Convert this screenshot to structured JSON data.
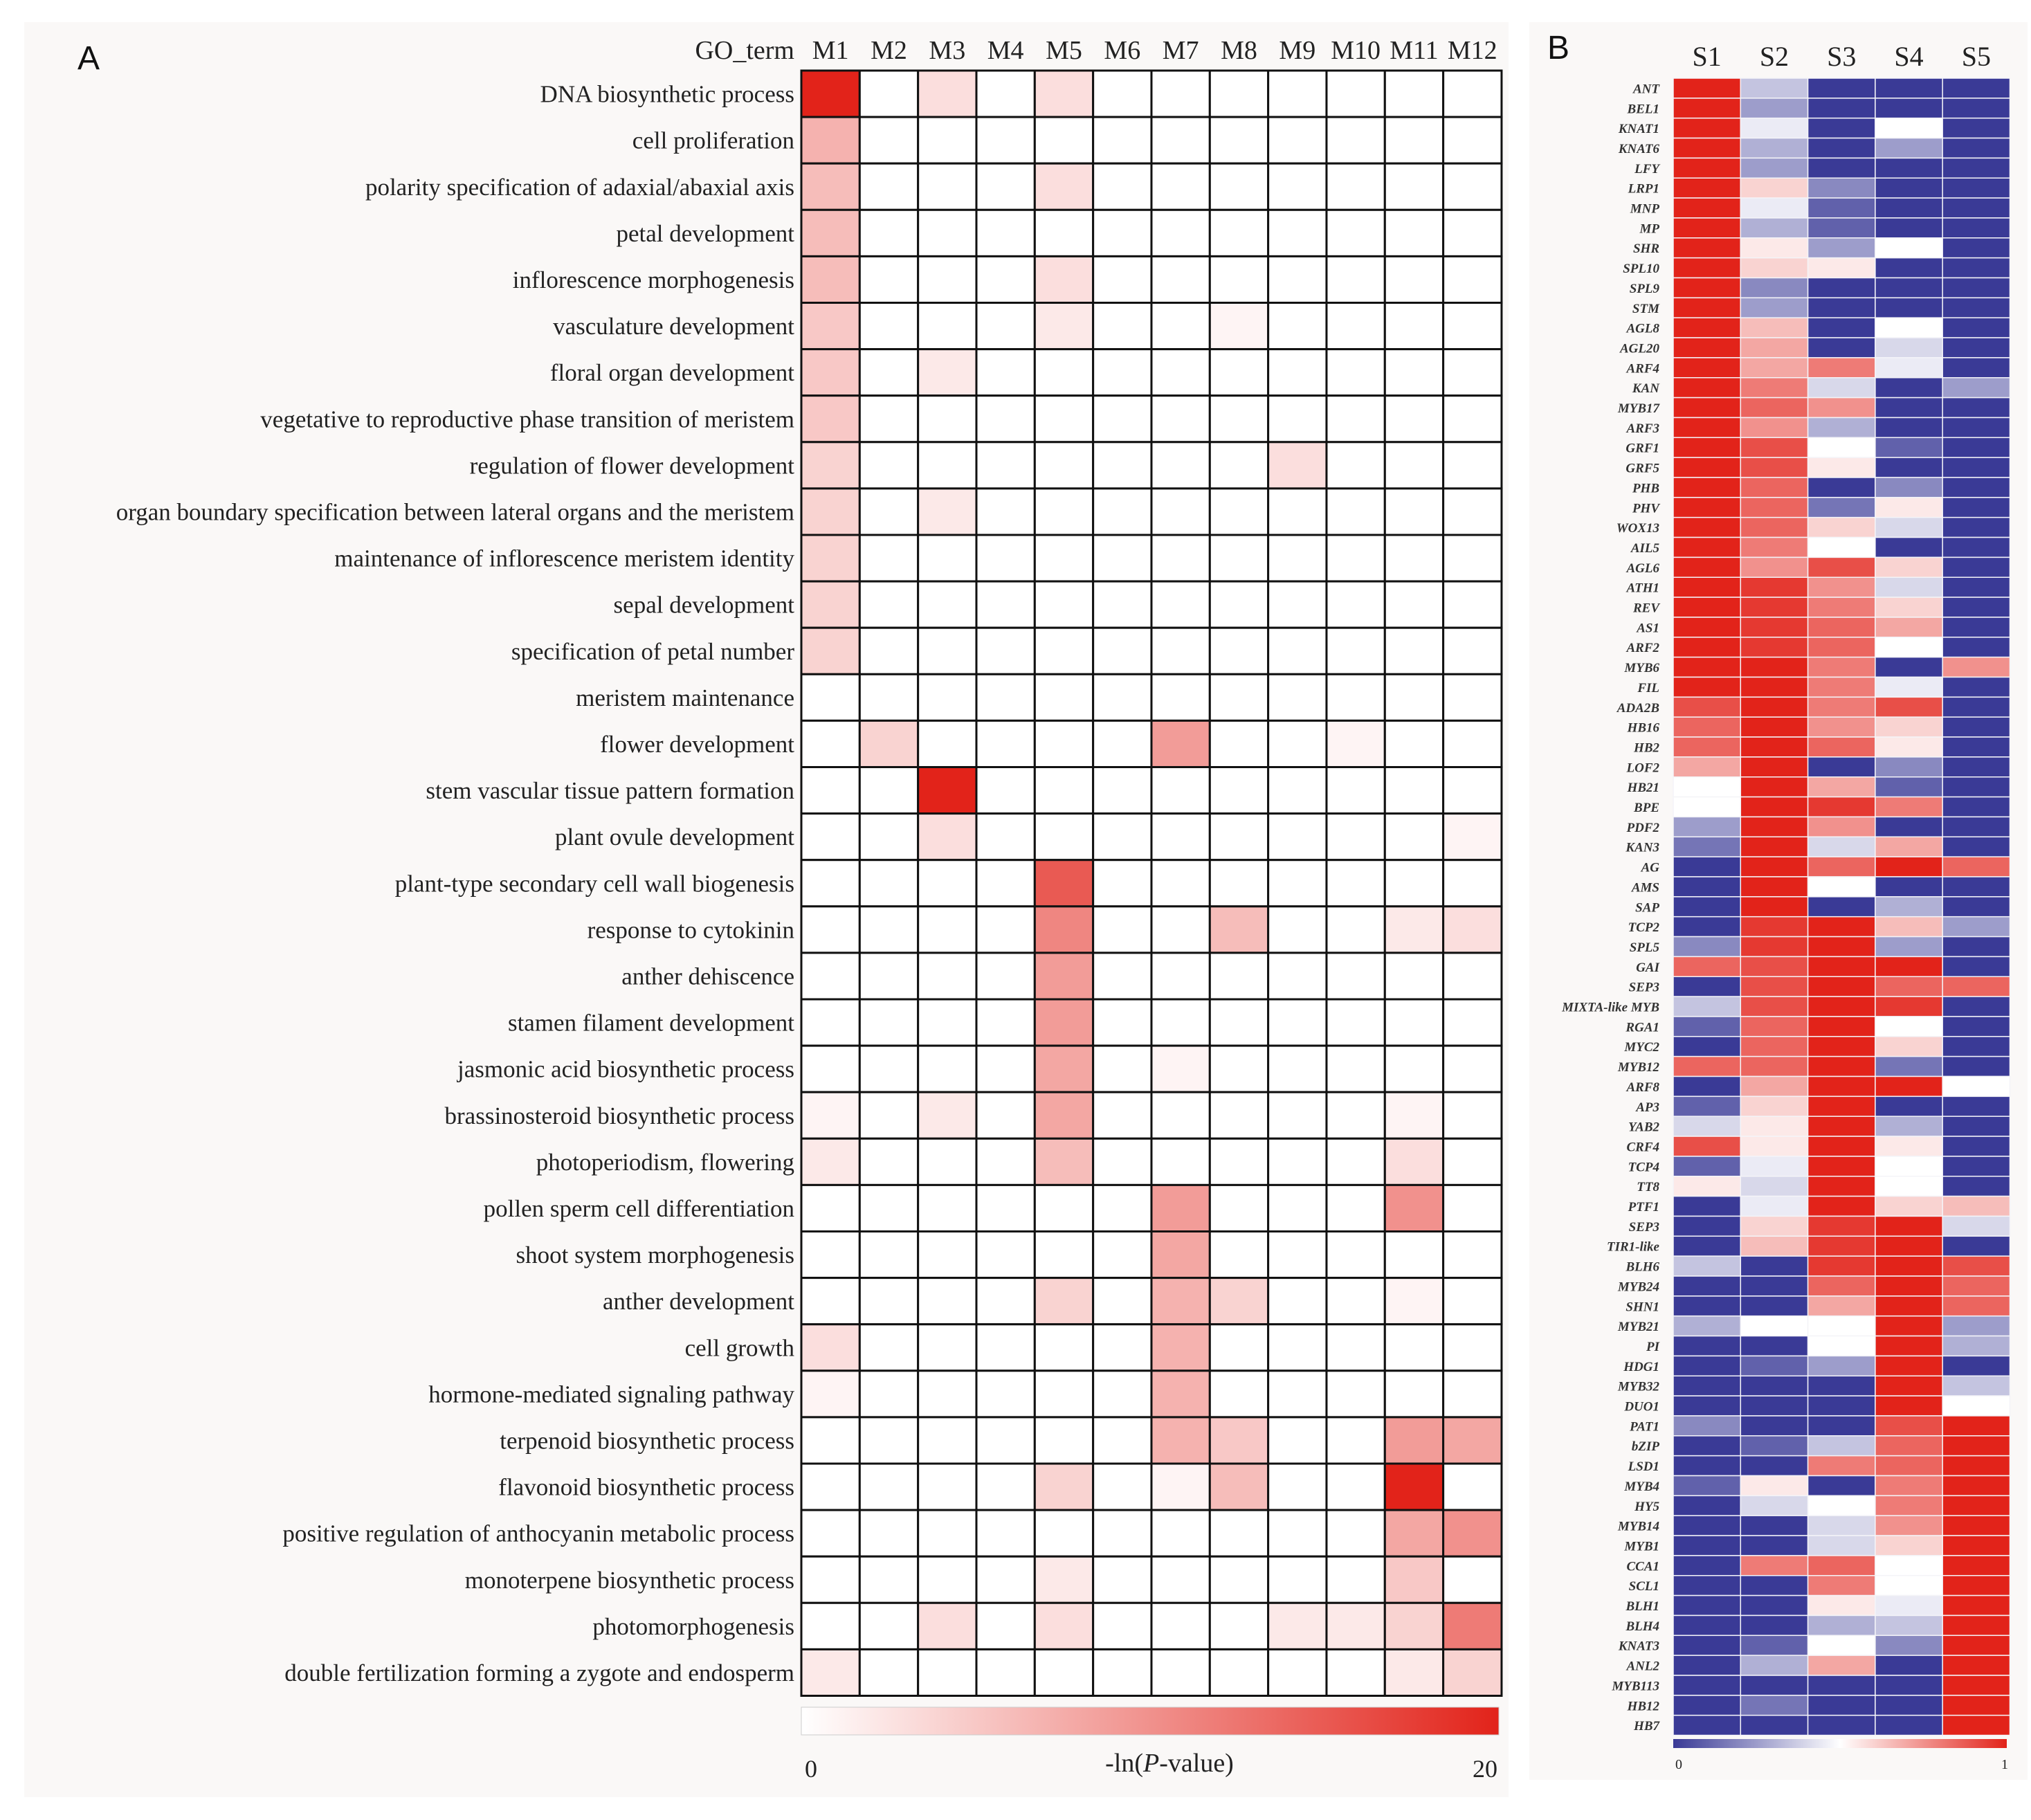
{
  "chart_data": [
    {
      "type": "heatmap",
      "panel_label": "A",
      "corner_label": "GO_term",
      "columns": [
        "M1",
        "M2",
        "M3",
        "M4",
        "M5",
        "M6",
        "M7",
        "M8",
        "M9",
        "M10",
        "M11",
        "M12"
      ],
      "rows": [
        "DNA biosynthetic process",
        "cell proliferation",
        "polarity specification of adaxial/abaxial axis",
        "petal development",
        "inflorescence morphogenesis",
        "vasculature development",
        "floral organ development",
        "vegetative to reproductive phase transition of meristem",
        "regulation of flower development",
        "organ boundary specification between lateral organs and the meristem",
        "maintenance of inflorescence meristem identity",
        "sepal development",
        "specification of petal number",
        "meristem maintenance",
        "flower development",
        "stem vascular tissue pattern formation",
        "plant ovule development",
        "plant-type secondary cell wall biogenesis",
        "response to cytokinin",
        "anther dehiscence",
        "stamen filament development",
        "jasmonic acid biosynthetic process",
        "brassinosteroid biosynthetic process",
        "photoperiodism, flowering",
        "pollen sperm cell differentiation",
        "shoot system morphogenesis",
        "anther development",
        "cell growth",
        "hormone-mediated signaling pathway",
        "terpenoid biosynthetic process",
        "flavonoid biosynthetic process",
        "positive regulation of anthocyanin metabolic process",
        "monoterpene biosynthetic process",
        "photomorphogenesis",
        "double fertilization forming a zygote and endosperm"
      ],
      "values": [
        [
          20,
          0,
          3,
          0,
          3,
          0,
          0,
          0,
          0,
          0,
          0,
          0
        ],
        [
          7,
          0,
          0,
          0,
          0,
          0,
          0,
          0,
          0,
          0,
          0,
          0
        ],
        [
          6,
          0,
          0,
          0,
          3,
          0,
          0,
          0,
          0,
          0,
          0,
          0
        ],
        [
          6,
          0,
          0,
          0,
          0,
          0,
          0,
          0,
          0,
          0,
          0,
          0
        ],
        [
          6,
          0,
          0,
          0,
          3,
          0,
          0,
          0,
          0,
          0,
          0,
          0
        ],
        [
          5,
          0,
          0,
          0,
          2,
          0,
          0,
          1,
          0,
          0,
          0,
          0
        ],
        [
          5,
          0,
          2,
          0,
          0,
          0,
          0,
          0,
          0,
          0,
          0,
          0
        ],
        [
          5,
          0,
          0,
          0,
          0,
          0,
          0,
          0,
          0,
          0,
          0,
          0
        ],
        [
          4,
          0,
          0,
          0,
          0,
          0,
          0,
          0,
          3,
          0,
          0,
          0
        ],
        [
          4,
          0,
          2,
          0,
          0,
          0,
          0,
          0,
          0,
          0,
          0,
          0
        ],
        [
          4,
          0,
          0,
          0,
          0,
          0,
          0,
          0,
          0,
          0,
          0,
          0
        ],
        [
          4,
          0,
          0,
          0,
          0,
          0,
          0,
          0,
          0,
          0,
          0,
          0
        ],
        [
          4,
          0,
          0,
          0,
          0,
          0,
          0,
          0,
          0,
          0,
          0,
          0
        ],
        [
          0,
          0,
          0,
          0,
          0,
          0,
          0,
          0,
          0,
          0,
          0,
          0
        ],
        [
          0,
          4,
          0,
          0,
          0,
          0,
          9,
          0,
          0,
          1,
          0,
          0
        ],
        [
          0,
          0,
          20,
          0,
          0,
          0,
          0,
          0,
          0,
          0,
          0,
          0
        ],
        [
          0,
          0,
          3,
          0,
          0,
          0,
          0,
          0,
          0,
          0,
          0,
          1
        ],
        [
          0,
          0,
          0,
          0,
          15,
          0,
          0,
          0,
          0,
          0,
          0,
          0
        ],
        [
          0,
          0,
          0,
          0,
          11,
          0,
          0,
          6,
          0,
          0,
          2,
          3
        ],
        [
          0,
          0,
          0,
          0,
          9,
          0,
          0,
          0,
          0,
          0,
          0,
          0
        ],
        [
          0,
          0,
          0,
          0,
          9,
          0,
          0,
          0,
          0,
          0,
          0,
          0
        ],
        [
          0,
          0,
          0,
          0,
          8,
          0,
          1,
          0,
          0,
          0,
          0,
          0
        ],
        [
          1,
          0,
          2,
          0,
          8,
          0,
          0,
          0,
          0,
          0,
          1,
          0
        ],
        [
          2,
          0,
          0,
          0,
          6,
          0,
          0,
          0,
          0,
          0,
          3,
          0
        ],
        [
          0,
          0,
          0,
          0,
          0,
          0,
          9,
          0,
          0,
          0,
          10,
          0
        ],
        [
          0,
          0,
          0,
          0,
          0,
          0,
          8,
          0,
          0,
          0,
          0,
          0
        ],
        [
          0,
          0,
          0,
          0,
          4,
          0,
          7,
          4,
          0,
          0,
          1,
          0
        ],
        [
          3,
          0,
          0,
          0,
          0,
          0,
          7,
          0,
          0,
          0,
          0,
          0
        ],
        [
          1,
          0,
          0,
          0,
          0,
          0,
          7,
          0,
          0,
          0,
          0,
          0
        ],
        [
          0,
          0,
          0,
          0,
          0,
          0,
          7,
          5,
          0,
          0,
          9,
          8
        ],
        [
          0,
          0,
          0,
          0,
          4,
          0,
          1,
          6,
          0,
          0,
          20,
          0
        ],
        [
          0,
          0,
          0,
          0,
          0,
          0,
          0,
          0,
          0,
          0,
          8,
          10
        ],
        [
          0,
          0,
          0,
          0,
          2,
          0,
          0,
          0,
          0,
          0,
          5,
          0
        ],
        [
          0,
          0,
          3,
          0,
          3,
          0,
          0,
          0,
          2,
          2,
          4,
          12
        ],
        [
          2,
          0,
          0,
          0,
          0,
          0,
          0,
          0,
          0,
          0,
          2,
          4
        ]
      ],
      "colorbar": {
        "min_label": "0",
        "max_label": "20",
        "label_prefix": "-ln(",
        "label_italic": "P",
        "label_suffix": "-value)",
        "low_color": "#ffffff",
        "high_color": "#e2231a"
      }
    },
    {
      "type": "heatmap",
      "panel_label": "B",
      "columns": [
        "S1",
        "S2",
        "S3",
        "S4",
        "S5"
      ],
      "rows": [
        "ANT",
        "BEL1",
        "KNAT1",
        "KNAT6",
        "LFY",
        "LRP1",
        "MNP",
        "MP",
        "SHR",
        "SPL10",
        "SPL9",
        "STM",
        "AGL8",
        "AGL20",
        "ARF4",
        "KAN",
        "MYB17",
        "ARF3",
        "GRF1",
        "GRF5",
        "PHB",
        "PHV",
        "WOX13",
        "AIL5",
        "AGL6",
        "ATH1",
        "REV",
        "AS1",
        "ARF2",
        "MYB6",
        "FIL",
        "ADA2B",
        "HB16",
        "HB2",
        "LOF2",
        "HB21",
        "BPE",
        "PDF2",
        "KAN3",
        "AG",
        "AMS",
        "SAP",
        "TCP2",
        "SPL5",
        "GAI",
        "SEP3",
        "MIXTA-like MYB",
        "RGA1",
        "MYC2",
        "MYB12",
        "ARF8",
        "AP3",
        "YAB2",
        "CRF4",
        "TCP4",
        "TT8",
        "PTF1",
        "SEP3",
        "TIR1-like",
        "BLH6",
        "MYB24",
        "SHN1",
        "MYB21",
        "PI",
        "HDG1",
        "MYB32",
        "DUO1",
        "PAT1",
        "bZIP",
        "LSD1",
        "MYB4",
        "HY5",
        "MYB14",
        "MYB1",
        "CCA1",
        "SCL1",
        "BLH1",
        "BLH4",
        "KNAT3",
        "ANL2",
        "MYB113",
        "HB12",
        "HB7"
      ],
      "values": [
        [
          1.0,
          0.35,
          0.0,
          0.0,
          0.0
        ],
        [
          1.0,
          0.25,
          0.0,
          0.0,
          0.0
        ],
        [
          1.0,
          0.45,
          0.0,
          0.5,
          0.0
        ],
        [
          1.0,
          0.3,
          0.0,
          0.25,
          0.0
        ],
        [
          1.0,
          0.25,
          0.0,
          0.0,
          0.0
        ],
        [
          1.0,
          0.6,
          0.2,
          0.0,
          0.0
        ],
        [
          1.0,
          0.45,
          0.1,
          0.0,
          0.0
        ],
        [
          1.0,
          0.3,
          0.1,
          0.0,
          0.0
        ],
        [
          1.0,
          0.55,
          0.25,
          0.5,
          0.0
        ],
        [
          1.0,
          0.6,
          0.55,
          0.0,
          0.0
        ],
        [
          1.0,
          0.2,
          0.0,
          0.0,
          0.0
        ],
        [
          1.0,
          0.25,
          0.0,
          0.0,
          0.0
        ],
        [
          1.0,
          0.65,
          0.0,
          0.5,
          0.0
        ],
        [
          1.0,
          0.7,
          0.0,
          0.4,
          0.0
        ],
        [
          1.0,
          0.7,
          0.8,
          0.45,
          0.0
        ],
        [
          1.0,
          0.8,
          0.4,
          0.0,
          0.25
        ],
        [
          1.0,
          0.85,
          0.75,
          0.0,
          0.0
        ],
        [
          1.0,
          0.75,
          0.3,
          0.0,
          0.0
        ],
        [
          1.0,
          0.9,
          0.5,
          0.1,
          0.0
        ],
        [
          1.0,
          0.9,
          0.55,
          0.0,
          0.0
        ],
        [
          1.0,
          0.85,
          0.0,
          0.2,
          0.0
        ],
        [
          1.0,
          0.85,
          0.15,
          0.55,
          0.0
        ],
        [
          1.0,
          0.85,
          0.6,
          0.4,
          0.0
        ],
        [
          1.0,
          0.8,
          0.5,
          0.0,
          0.0
        ],
        [
          1.0,
          0.75,
          0.9,
          0.6,
          0.0
        ],
        [
          1.0,
          0.95,
          0.75,
          0.4,
          0.0
        ],
        [
          1.0,
          0.95,
          0.8,
          0.6,
          0.0
        ],
        [
          1.0,
          0.95,
          0.85,
          0.7,
          0.0
        ],
        [
          1.0,
          0.95,
          0.85,
          0.5,
          0.0
        ],
        [
          1.0,
          1.0,
          0.8,
          0.0,
          0.75
        ],
        [
          1.0,
          1.0,
          0.8,
          0.45,
          0.0
        ],
        [
          0.9,
          1.0,
          0.8,
          0.9,
          0.0
        ],
        [
          0.85,
          1.0,
          0.75,
          0.6,
          0.0
        ],
        [
          0.85,
          1.0,
          0.85,
          0.55,
          0.0
        ],
        [
          0.7,
          1.0,
          0.0,
          0.2,
          0.0
        ],
        [
          0.5,
          1.0,
          0.7,
          0.1,
          0.0
        ],
        [
          0.5,
          1.0,
          0.95,
          0.8,
          0.0
        ],
        [
          0.25,
          1.0,
          0.75,
          0.0,
          0.0
        ],
        [
          0.15,
          1.0,
          0.4,
          0.7,
          0.0
        ],
        [
          0.0,
          1.0,
          0.85,
          1.0,
          0.85
        ],
        [
          0.0,
          1.0,
          0.5,
          0.0,
          0.0
        ],
        [
          0.0,
          1.0,
          0.0,
          0.3,
          0.0
        ],
        [
          0.0,
          0.95,
          1.0,
          0.65,
          0.25
        ],
        [
          0.2,
          0.95,
          1.0,
          0.25,
          0.0
        ],
        [
          0.85,
          0.9,
          1.0,
          1.0,
          0.0
        ],
        [
          0.0,
          0.9,
          1.0,
          0.85,
          0.85
        ],
        [
          0.35,
          0.9,
          1.0,
          0.95,
          0.0
        ],
        [
          0.1,
          0.85,
          1.0,
          0.5,
          0.0
        ],
        [
          0.0,
          0.85,
          1.0,
          0.6,
          0.0
        ],
        [
          0.85,
          0.85,
          1.0,
          0.15,
          0.0
        ],
        [
          0.0,
          0.7,
          1.0,
          1.0,
          0.5
        ],
        [
          0.1,
          0.6,
          1.0,
          0.0,
          0.0
        ],
        [
          0.4,
          0.55,
          1.0,
          0.3,
          0.0
        ],
        [
          0.9,
          0.55,
          1.0,
          0.55,
          0.0
        ],
        [
          0.1,
          0.45,
          1.0,
          0.5,
          0.0
        ],
        [
          0.55,
          0.4,
          1.0,
          0.5,
          0.0
        ],
        [
          0.0,
          0.45,
          1.0,
          0.6,
          0.65
        ],
        [
          0.0,
          0.6,
          0.95,
          1.0,
          0.4
        ],
        [
          0.0,
          0.65,
          0.95,
          1.0,
          0.0
        ],
        [
          0.35,
          0.0,
          0.95,
          1.0,
          0.9
        ],
        [
          0.0,
          0.0,
          0.85,
          1.0,
          0.85
        ],
        [
          0.0,
          0.0,
          0.7,
          1.0,
          0.85
        ],
        [
          0.3,
          0.5,
          0.5,
          1.0,
          0.25
        ],
        [
          0.0,
          0.0,
          0.5,
          1.0,
          0.3
        ],
        [
          0.0,
          0.1,
          0.25,
          1.0,
          0.0
        ],
        [
          0.0,
          0.0,
          0.0,
          1.0,
          0.35
        ],
        [
          0.0,
          0.0,
          0.0,
          1.0,
          0.5
        ],
        [
          0.2,
          0.0,
          0.0,
          0.9,
          1.0
        ],
        [
          0.0,
          0.1,
          0.35,
          0.85,
          1.0
        ],
        [
          0.0,
          0.0,
          0.8,
          0.85,
          1.0
        ],
        [
          0.1,
          0.55,
          0.0,
          0.8,
          1.0
        ],
        [
          0.0,
          0.4,
          0.5,
          0.8,
          1.0
        ],
        [
          0.0,
          0.0,
          0.4,
          0.75,
          1.0
        ],
        [
          0.0,
          0.0,
          0.4,
          0.6,
          1.0
        ],
        [
          0.0,
          0.8,
          0.85,
          0.5,
          1.0
        ],
        [
          0.0,
          0.0,
          0.8,
          0.5,
          1.0
        ],
        [
          0.0,
          0.0,
          0.55,
          0.45,
          1.0
        ],
        [
          0.0,
          0.0,
          0.3,
          0.35,
          1.0
        ],
        [
          0.0,
          0.1,
          0.5,
          0.2,
          1.0
        ],
        [
          0.0,
          0.3,
          0.7,
          0.0,
          1.0
        ],
        [
          0.0,
          0.0,
          0.0,
          0.0,
          1.0
        ],
        [
          0.0,
          0.15,
          0.0,
          0.0,
          1.0
        ],
        [
          0.0,
          0.0,
          0.0,
          0.0,
          1.0
        ]
      ],
      "colorbar": {
        "min_label": "0",
        "max_label": "1",
        "low_color": "#3a3a96",
        "mid_color": "#ffffff",
        "high_color": "#e2231a"
      }
    }
  ]
}
